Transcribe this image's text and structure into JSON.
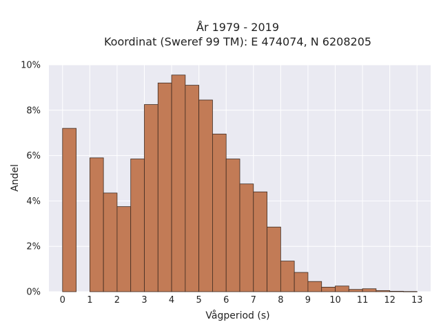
{
  "chart_data": {
    "type": "bar",
    "title_lines": [
      "År 1979 - 2019",
      "Koordinat (Sweref 99 TM): E 474074, N 6208205"
    ],
    "xlabel": "Vågperiod (s)",
    "ylabel": "Andel",
    "xlim": [
      -0.5,
      13.5
    ],
    "ylim": [
      0,
      10
    ],
    "x_ticks": [
      0,
      1,
      2,
      3,
      4,
      5,
      6,
      7,
      8,
      9,
      10,
      11,
      12,
      13
    ],
    "y_ticks": [
      0,
      2,
      4,
      6,
      8,
      10
    ],
    "y_tick_labels": [
      "0%",
      "2%",
      "4%",
      "6%",
      "8%",
      "10%"
    ],
    "bin_width": 0.5,
    "bin_starts": [
      0,
      1,
      1.5,
      2,
      2.5,
      3,
      3.5,
      4,
      4.5,
      5,
      5.5,
      6,
      6.5,
      7,
      7.5,
      8,
      8.5,
      9,
      9.5,
      10,
      10.5,
      11,
      11.5,
      12,
      12.5
    ],
    "values": [
      7.2,
      5.9,
      4.35,
      3.75,
      5.85,
      8.25,
      9.2,
      9.55,
      9.1,
      8.45,
      6.95,
      5.85,
      4.75,
      4.4,
      2.85,
      1.35,
      0.85,
      0.45,
      0.2,
      0.25,
      0.1,
      0.13,
      0.05,
      0.02,
      0.01
    ],
    "grid": true,
    "legend": "none",
    "colors": {
      "bar_fill": "#c27b56",
      "bar_edge": "#3d2a20",
      "plot_bg": "#eaeaf2",
      "grid": "#ffffff"
    }
  }
}
